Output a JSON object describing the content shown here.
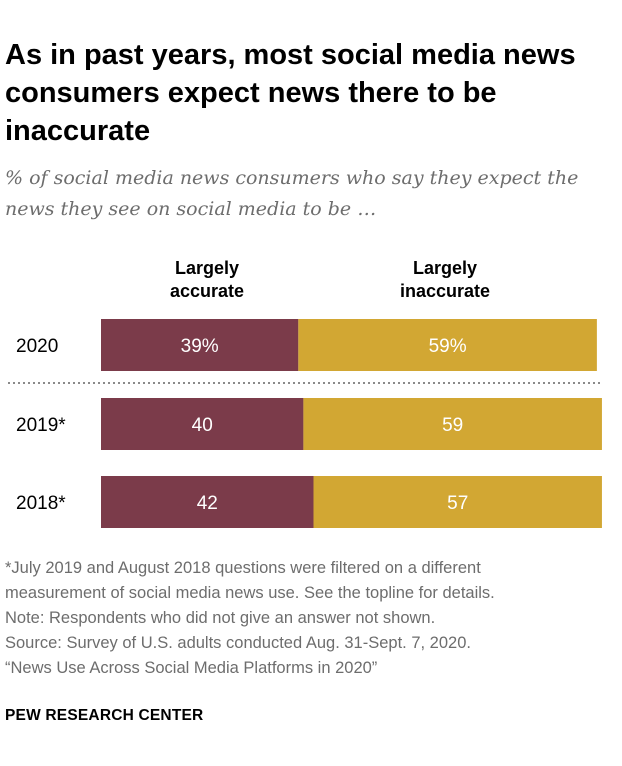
{
  "title": "As in past years, most social media news consumers expect news there to be inaccurate",
  "subtitle": "% of social media news consumers who say they expect the news they see on social media to be …",
  "chart_data": {
    "type": "bar",
    "orientation": "horizontal-stacked",
    "categories": [
      "2020",
      "2019*",
      "2018*"
    ],
    "series": [
      {
        "name": "Largely accurate",
        "values": [
          39,
          40,
          42
        ],
        "labels": [
          "39%",
          "40",
          "42"
        ],
        "color": "#7b3b4a"
      },
      {
        "name": "Largely inaccurate",
        "values": [
          59,
          59,
          57
        ],
        "labels": [
          "59%",
          "59",
          "57"
        ],
        "color": "#d2a733"
      }
    ],
    "xlim": [
      0,
      100
    ],
    "grid": false,
    "legend": "top (column headers)"
  },
  "column_headers": {
    "accurate": [
      "Largely",
      "accurate"
    ],
    "inaccurate": [
      "Largely",
      "inaccurate"
    ]
  },
  "footnotes": [
    "*July 2019 and August 2018 questions were filtered on a different",
    "measurement of social media news use. See the topline for details.",
    "Note: Respondents who did not give an answer not shown.",
    "Source: Survey of U.S. adults conducted Aug. 31-Sept. 7, 2020.",
    "“News Use Across Social Media Platforms in 2020”"
  ],
  "brand": "PEW RESEARCH CENTER"
}
